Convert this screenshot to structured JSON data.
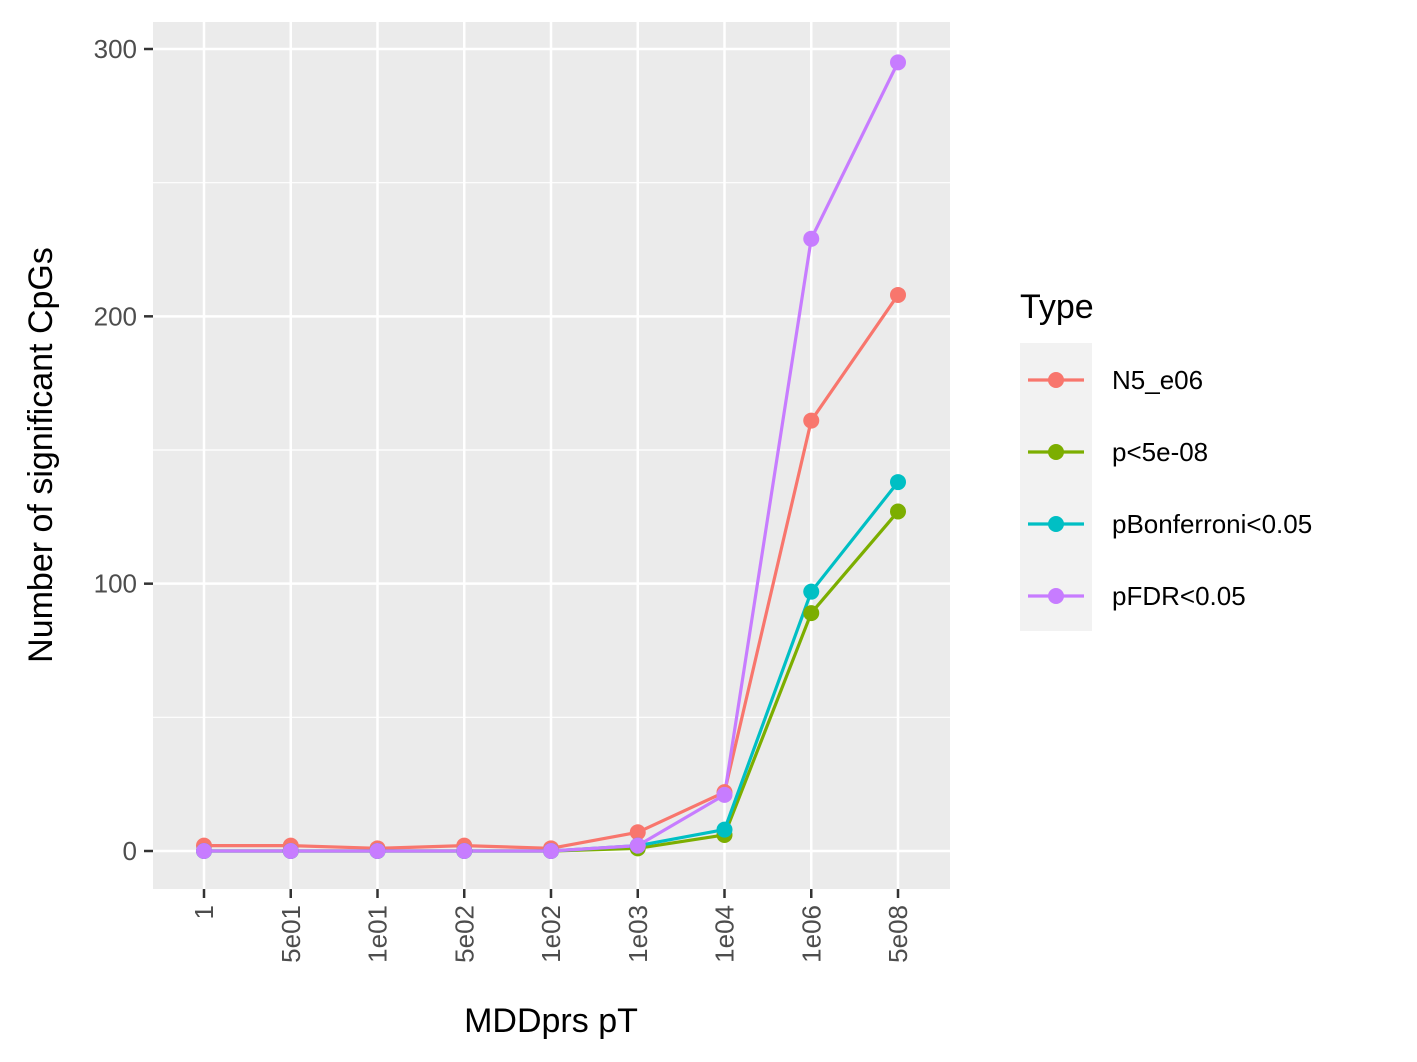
{
  "chart_data": {
    "type": "line",
    "categories": [
      "1",
      "5e01",
      "1e01",
      "5e02",
      "1e02",
      "1e03",
      "1e04",
      "1e06",
      "5e08"
    ],
    "xlabel": "MDDprs pT",
    "ylabel": "Number of significant CpGs",
    "ylim": [
      -14,
      311
    ],
    "yticks": [
      0,
      100,
      200,
      300
    ],
    "grid": true,
    "legend": {
      "title": "Type",
      "position": "right"
    },
    "series": [
      {
        "name": "N5_e06",
        "color": "#F8766D",
        "values": [
          2,
          2,
          1,
          2,
          1,
          7,
          22,
          161,
          208
        ]
      },
      {
        "name": "p<5e-08",
        "color": "#7CAE00",
        "values": [
          0,
          0,
          0,
          0,
          0,
          1,
          6,
          89,
          127
        ]
      },
      {
        "name": "pBonferroni<0.05",
        "color": "#00BFC4",
        "values": [
          0,
          0,
          0,
          0,
          0,
          2,
          8,
          97,
          138
        ]
      },
      {
        "name": "pFDR<0.05",
        "color": "#C77CFF",
        "values": [
          0,
          0,
          0,
          0,
          0,
          2,
          21,
          229,
          295
        ]
      }
    ]
  }
}
